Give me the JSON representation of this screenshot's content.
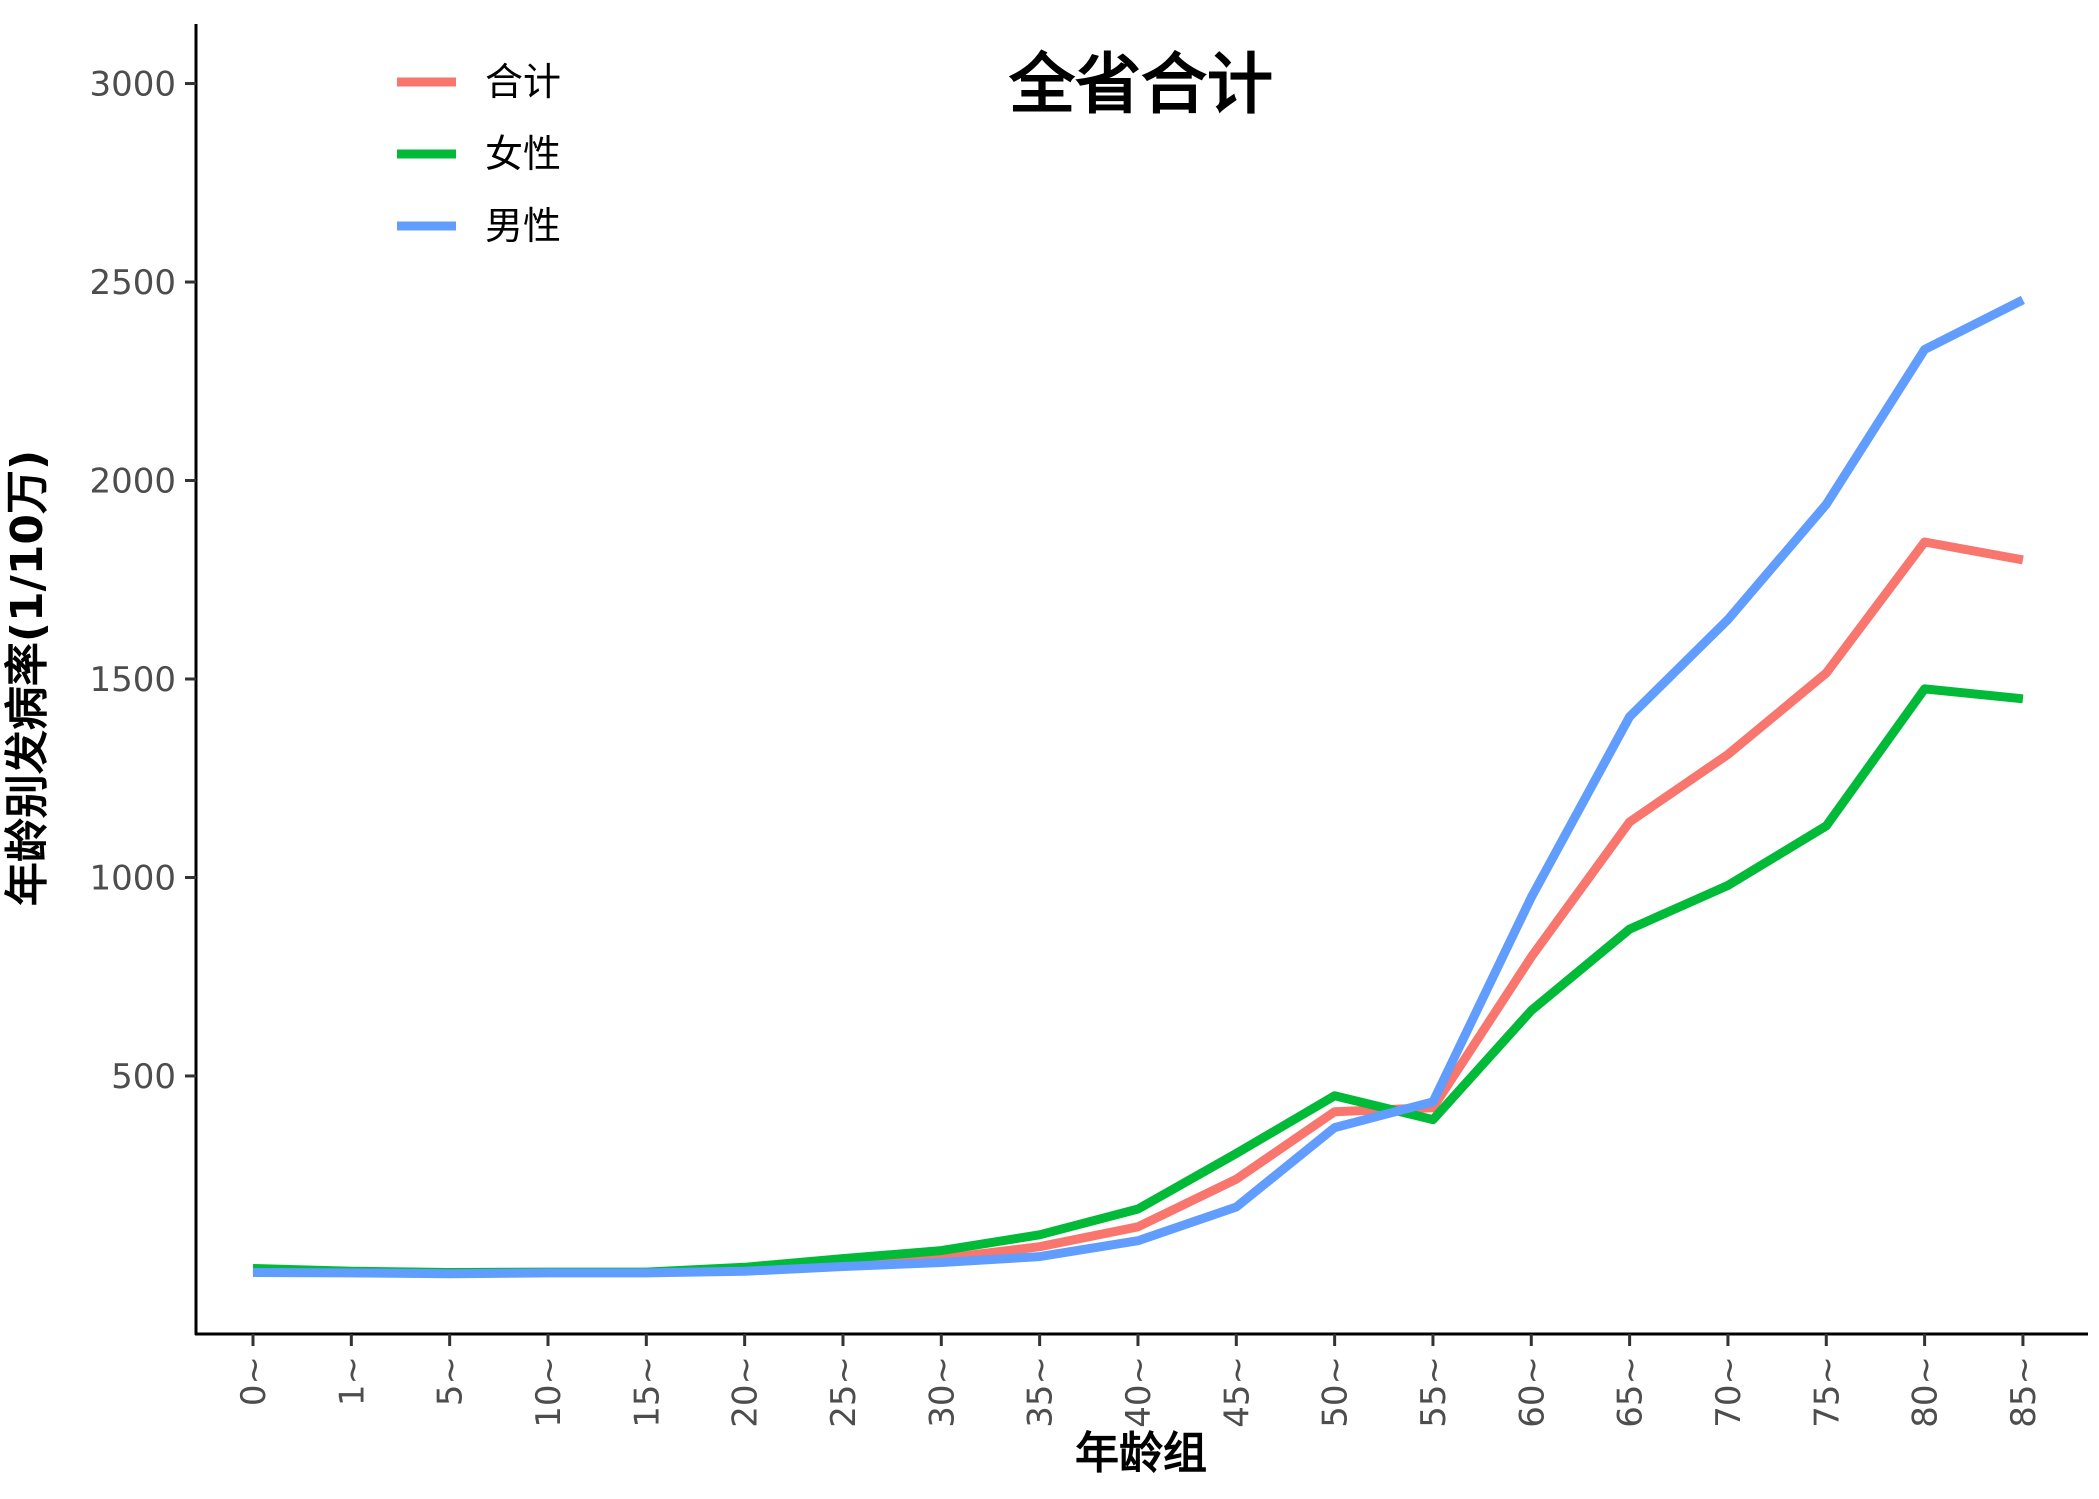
{
  "chart_data": {
    "type": "line",
    "title": "全省合计",
    "xlabel": "年龄组",
    "ylabel": "年龄别发病率(1/10万)",
    "categories": [
      "0~",
      "1~",
      "5~",
      "10~",
      "15~",
      "20~",
      "25~",
      "30~",
      "35~",
      "40~",
      "45~",
      "50~",
      "55~",
      "60~",
      "65~",
      "70~",
      "75~",
      "80~",
      "85~"
    ],
    "yticks": [
      500,
      1000,
      1500,
      2000,
      2500,
      3000
    ],
    "ylim": [
      -150,
      3150
    ],
    "grid": false,
    "legend_position": "top-left",
    "series": [
      {
        "name": "合计",
        "color": "#F8766D",
        "values": [
          10,
          5,
          3,
          5,
          5,
          12,
          25,
          40,
          70,
          120,
          240,
          410,
          420,
          800,
          1140,
          1310,
          1515,
          1845,
          1800
        ]
      },
      {
        "name": "女性",
        "color": "#00BA38",
        "values": [
          15,
          8,
          5,
          6,
          6,
          18,
          40,
          60,
          100,
          165,
          305,
          450,
          390,
          665,
          870,
          980,
          1130,
          1475,
          1450
        ]
      },
      {
        "name": "男性",
        "color": "#619CFF",
        "values": [
          5,
          4,
          2,
          4,
          4,
          8,
          20,
          30,
          45,
          85,
          170,
          370,
          435,
          950,
          1405,
          1650,
          1940,
          2330,
          2455
        ]
      }
    ]
  }
}
